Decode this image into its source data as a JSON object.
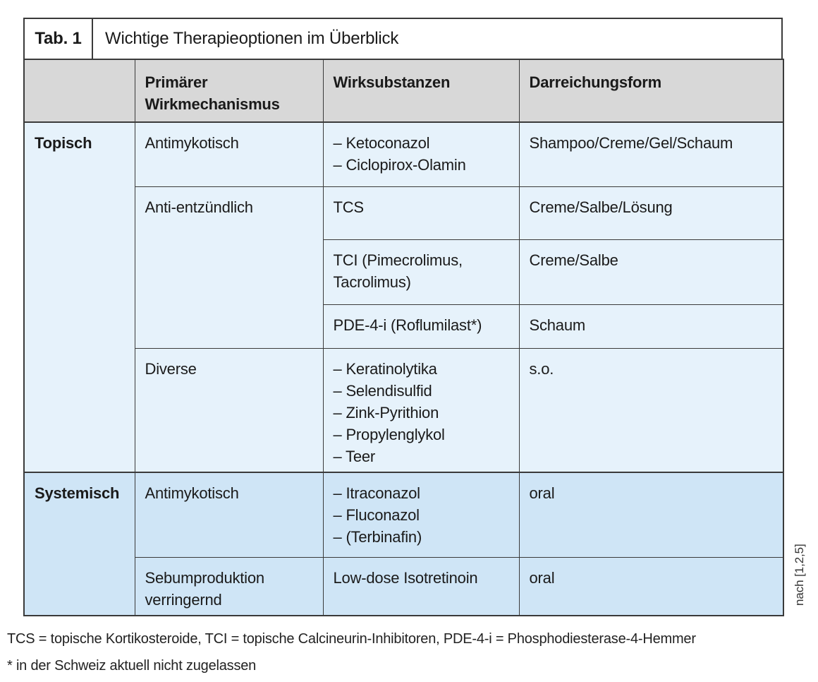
{
  "title_bar": {
    "tab_label": "Tab. 1",
    "title": "Wichtige Therapieoptionen im Überblick"
  },
  "table": {
    "headers": [
      "",
      "Primärer Wirkmechanismus",
      "Wirksubstanzen",
      "Darreichungsform"
    ],
    "rows": [
      {
        "section": "Topisch",
        "mechanism": "Antimykotisch",
        "substances": [
          "– Ketoconazol",
          "– Ciclopirox-Olamin"
        ],
        "form": "Shampoo/Creme/Gel/Schaum"
      },
      {
        "mechanism": "Anti-entzündlich",
        "substances": [
          "TCS"
        ],
        "form": "Creme/Salbe/Lösung"
      },
      {
        "substances": [
          "TCI (Pimecrolimus, Tacrolimus)"
        ],
        "form": "Creme/Salbe"
      },
      {
        "substances": [
          "PDE-4-i (Roflumilast*)"
        ],
        "form": "Schaum"
      },
      {
        "mechanism": "Diverse",
        "substances": [
          "– Keratinolytika",
          "– Selendisulfid",
          "– Zink-Pyrithion",
          "– Propylenglykol",
          "– Teer"
        ],
        "form": "s.o."
      },
      {
        "section": "Systemisch",
        "mechanism": "Antimykotisch",
        "substances": [
          "– Itraconazol",
          "– Fluconazol",
          "– (Terbinafin)"
        ],
        "form": "oral"
      },
      {
        "mechanism": "Sebumproduktion verringernd",
        "substances": [
          "Low-dose Isotretinoin"
        ],
        "form": "oral"
      }
    ]
  },
  "footnotes": {
    "abbreviations": "TCS = topische Kortikosteroide, TCI = topische Calcineurin-Inhibitoren, PDE-4-i = Phosphodiesterase-4-Hemmer",
    "asterisk": "* in der Schweiz aktuell nicht zugelassen"
  },
  "source_note": "nach [1,2,5]",
  "colors": {
    "header_bg": "#d8d8d8",
    "topisch_bg": "#e6f2fb",
    "systemisch_bg": "#cfe5f6",
    "border": "#3a3a3a",
    "title_bg": "#ffffff"
  }
}
